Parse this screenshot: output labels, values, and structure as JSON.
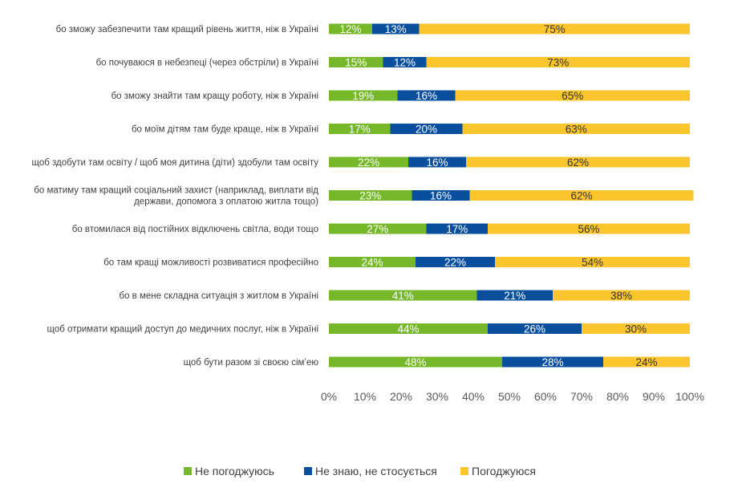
{
  "chart_data": {
    "type": "bar",
    "orientation": "horizontal",
    "stacked": true,
    "categories": [
      [
        "бо зможу забезпечити там кращий рівень життя, ніж в Україні"
      ],
      [
        "бо почуваюся в небезпеці (через обстріли) в Україні"
      ],
      [
        "бо зможу знайти там кращу роботу, ніж в Україні"
      ],
      [
        "бо моїм дітям там буде краще, ніж в Україні"
      ],
      [
        "щоб здобути там освіту / щоб моя дитина (діти) здобули там освіту"
      ],
      [
        "бо матиму там кращий соціальний захист (наприклад, виплати від",
        "держави, допомога з оплатою житла тощо)"
      ],
      [
        "бо втомилася від постійних відключень світла, води тощо"
      ],
      [
        "бо там кращі можливості розвиватися професійно"
      ],
      [
        "бо в мене складна ситуація з житлом в Україні"
      ],
      [
        "щоб отримати кращий доступ до медичних послуг, ніж в Україні"
      ],
      [
        "щоб бути разом зі своєю сім’ею"
      ]
    ],
    "series": [
      {
        "name": "Не погоджуюсь",
        "color": "#76b82a",
        "label_color": "#ffffff",
        "values": [
          12,
          15,
          19,
          17,
          22,
          23,
          27,
          24,
          41,
          44,
          48
        ],
        "labels": [
          "12%",
          "15%",
          "19%",
          "17%",
          "22%",
          "23%",
          "27%",
          "24%",
          "41%",
          "44%",
          "48%"
        ]
      },
      {
        "name": "Не знаю, не стосується",
        "color": "#0a4f9e",
        "label_color": "#ffffff",
        "values": [
          13,
          12,
          16,
          20,
          16,
          16,
          17,
          22,
          21,
          26,
          28
        ],
        "labels": [
          "13%",
          "12%",
          "16%",
          "20%",
          "16%",
          "16%",
          "17%",
          "22%",
          "21%",
          "26%",
          "28%"
        ]
      },
      {
        "name": "Погоджуюся",
        "color": "#fbc52d",
        "label_color": "#333333",
        "values": [
          75,
          73,
          65,
          63,
          62,
          62,
          56,
          54,
          38,
          30,
          24
        ],
        "labels": [
          "75%",
          "73%",
          "65%",
          "63%",
          "62%",
          "62%",
          "56%",
          "54%",
          "38%",
          "30%",
          "24%"
        ]
      }
    ],
    "xlim": [
      0,
      100
    ],
    "xticks": [
      "0%",
      "10%",
      "20%",
      "30%",
      "40%",
      "50%",
      "60%",
      "70%",
      "80%",
      "90%",
      "100%"
    ],
    "grid": false,
    "legend": "bottom",
    "title": "",
    "xlabel": "",
    "ylabel": ""
  }
}
